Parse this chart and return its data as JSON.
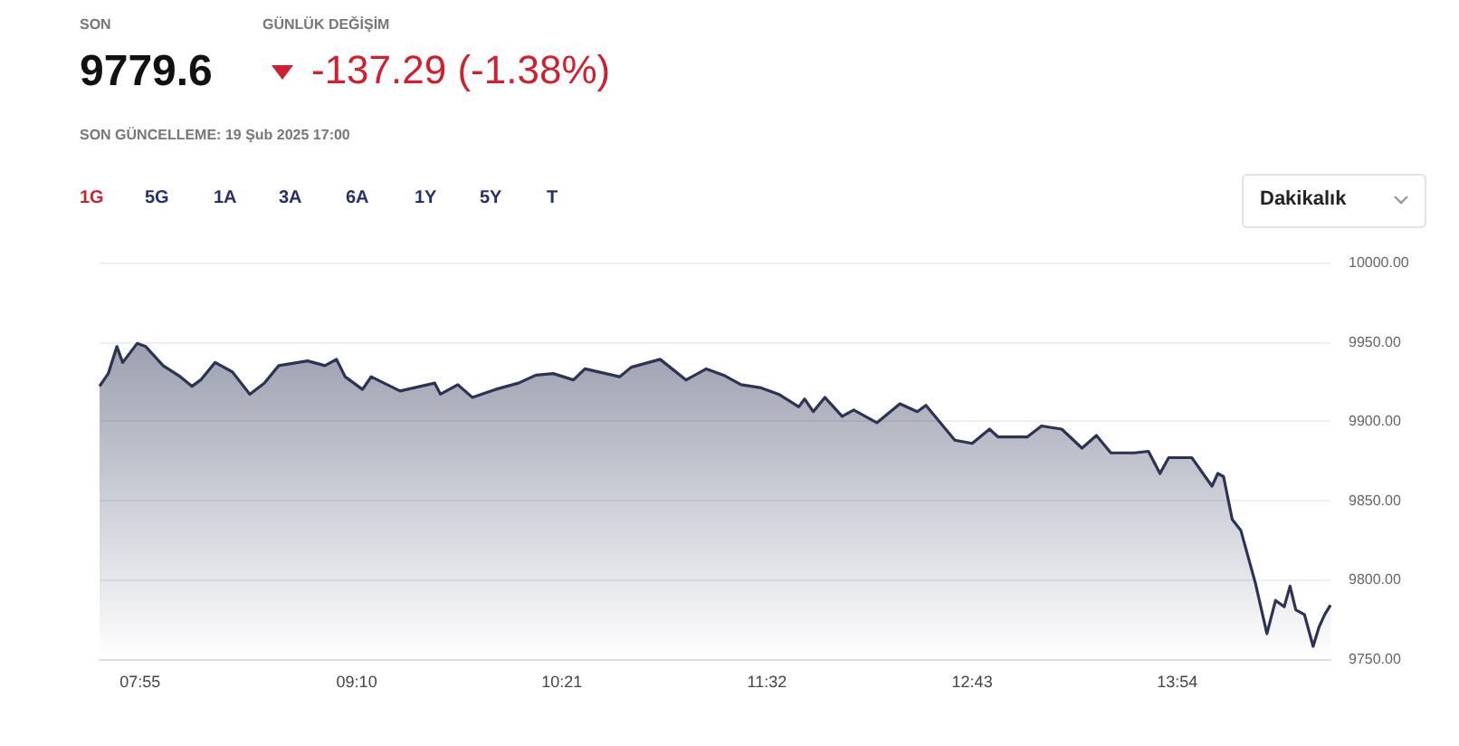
{
  "chart_data": {
    "type": "area",
    "annotations": [
      "SON",
      "9779.6",
      "GÜNLÜK DEĞİŞİM",
      "-137.29 (-1.38%)",
      "SON GÜNCELLEME: 19 Şub 2025 17:00",
      "1G",
      "5G",
      "1A",
      "3A",
      "6A",
      "1Y",
      "5Y",
      "T",
      "Dakikalık"
    ],
    "x": [
      "2025-02-19T07:41",
      "2025-02-19T07:44",
      "2025-02-19T07:47",
      "2025-02-19T07:49",
      "2025-02-19T07:54",
      "2025-02-19T07:57",
      "2025-02-19T08:03",
      "2025-02-19T08:09",
      "2025-02-19T08:13",
      "2025-02-19T08:16",
      "2025-02-19T08:21",
      "2025-02-19T08:27",
      "2025-02-19T08:33",
      "2025-02-19T08:38",
      "2025-02-19T08:43",
      "2025-02-19T08:53",
      "2025-02-19T08:59",
      "2025-02-19T09:03",
      "2025-02-19T09:06",
      "2025-02-19T09:12",
      "2025-02-19T09:15",
      "2025-02-19T09:25",
      "2025-02-19T09:37",
      "2025-02-19T09:39",
      "2025-02-19T09:45",
      "2025-02-19T09:50",
      "2025-02-19T09:58",
      "2025-02-19T10:06",
      "2025-02-19T10:12",
      "2025-02-19T10:18",
      "2025-02-19T10:25",
      "2025-02-19T10:29",
      "2025-02-19T10:41",
      "2025-02-19T10:45",
      "2025-02-19T10:55",
      "2025-02-19T11:04",
      "2025-02-19T11:11",
      "2025-02-19T11:17",
      "2025-02-19T11:23",
      "2025-02-19T11:30",
      "2025-02-19T11:36",
      "2025-02-19T11:43",
      "2025-02-19T11:45",
      "2025-02-19T11:48",
      "2025-02-19T11:52",
      "2025-02-19T11:58",
      "2025-02-19T12:02",
      "2025-02-19T12:10",
      "2025-02-19T12:18",
      "2025-02-19T12:24",
      "2025-02-19T12:27",
      "2025-02-19T12:37",
      "2025-02-19T12:43",
      "2025-02-19T12:49",
      "2025-02-19T12:52",
      "2025-02-19T13:02",
      "2025-02-19T13:07",
      "2025-02-19T13:14",
      "2025-02-19T13:21",
      "2025-02-19T13:26",
      "2025-02-19T13:31",
      "2025-02-19T13:39",
      "2025-02-19T13:44",
      "2025-02-19T13:48",
      "2025-02-19T13:51",
      "2025-02-19T13:59",
      "2025-02-19T14:06",
      "2025-02-19T14:08",
      "2025-02-19T14:10",
      "2025-02-19T14:13",
      "2025-02-19T14:16",
      "2025-02-19T14:21",
      "2025-02-19T14:25",
      "2025-02-19T14:28",
      "2025-02-19T14:31",
      "2025-02-19T14:33",
      "2025-02-19T14:35",
      "2025-02-19T14:38",
      "2025-02-19T14:41",
      "2025-02-19T14:43",
      "2025-02-19T14:45",
      "2025-02-19T14:47"
    ],
    "series": [
      {
        "color": "#2c3354",
        "values": [
          9922,
          9930,
          9947,
          9937,
          9949,
          9947,
          9935,
          9928,
          9922,
          9926,
          9937,
          9931,
          9917,
          9924,
          9935,
          9938,
          9935,
          9939,
          9928,
          9920,
          9928,
          9919,
          9924,
          9917,
          9923,
          9915,
          9920,
          9924,
          9929,
          9930,
          9926,
          9933,
          9928,
          9934,
          9939,
          9926,
          9933,
          9929,
          9923,
          9921,
          9917,
          9909,
          9914,
          9906,
          9915,
          9903,
          9907,
          9899,
          9911,
          9906,
          9910,
          9888,
          9886,
          9895,
          9890,
          9890,
          9897,
          9895,
          9883,
          9891,
          9880,
          9880,
          9881,
          9867,
          9877,
          9877,
          9859,
          9867,
          9865,
          9838,
          9831,
          9798,
          9766,
          9787,
          9783,
          9796,
          9781,
          9778,
          9758,
          9770,
          9778,
          9784
        ]
      }
    ],
    "xlim": [
      "2025-02-19T07:41",
      "2025-02-19T14:47"
    ],
    "xticks": [
      {
        "value": "2025-02-19T07:55",
        "label": "07:55"
      },
      {
        "value": "2025-02-19T09:10",
        "label": "09:10"
      },
      {
        "value": "2025-02-19T10:21",
        "label": "10:21"
      },
      {
        "value": "2025-02-19T11:32",
        "label": "11:32"
      },
      {
        "value": "2025-02-19T12:43",
        "label": "12:43"
      },
      {
        "value": "2025-02-19T13:54",
        "label": "13:54"
      }
    ],
    "ylim": [
      9750,
      10000
    ],
    "yticks": [
      {
        "value": 9750,
        "label": "9750.00"
      },
      {
        "value": 9800,
        "label": "9800.00"
      },
      {
        "value": 9850,
        "label": "9850.00"
      },
      {
        "value": 9900,
        "label": "9900.00"
      },
      {
        "value": 9950,
        "label": "9950.00"
      },
      {
        "value": 10000,
        "label": "10000.00"
      }
    ],
    "grid": "y",
    "marker": "none"
  }
}
